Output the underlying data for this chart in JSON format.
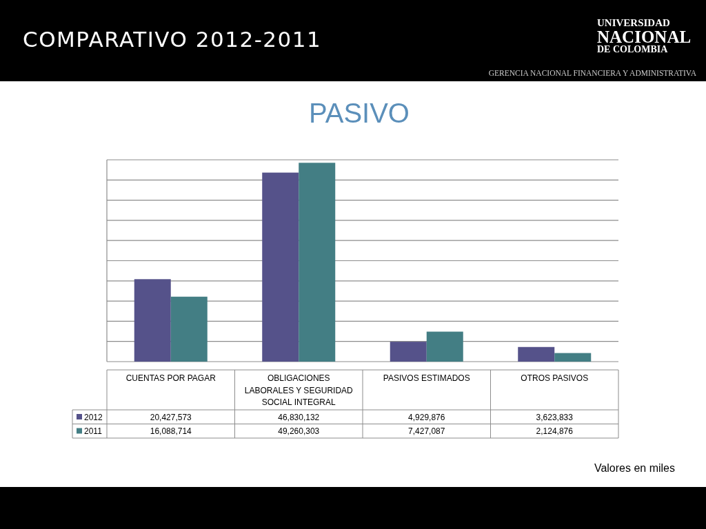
{
  "chart_data": {
    "type": "bar",
    "title": "COMPARATIVO 2012-2011",
    "subtitle": "PASIVO",
    "annotations": [
      "UNIVERSIDAD\nNACIONAL\nDE COLOMBIA",
      "GERENCIA NACIONAL FINANCIERA Y ADMINISTRATIVA",
      "Valores en miles"
    ],
    "categories": [
      "CUENTAS POR PAGAR",
      "OBLIGACIONES LABORALES Y SEGURIDAD SOCIAL INTEGRAL",
      "PASIVOS ESTIMADOS",
      "OTROS PASIVOS"
    ],
    "series": [
      {
        "name": "2012",
        "color": "#55528a",
        "values": [
          20427573,
          46830132,
          4929876,
          3623833
        ],
        "value_labels": [
          "20,427,573",
          "46,830,132",
          "4,929,876",
          "3,623,833"
        ]
      },
      {
        "name": "2011",
        "color": "#437e84",
        "values": [
          16088714,
          49260303,
          7427087,
          2124876
        ],
        "value_labels": [
          "16,088,714",
          "49,260,303",
          "7,427,087",
          "2,124,876"
        ]
      }
    ],
    "grid": true,
    "legend": "bottom",
    "tick_labels": "x"
  }
}
